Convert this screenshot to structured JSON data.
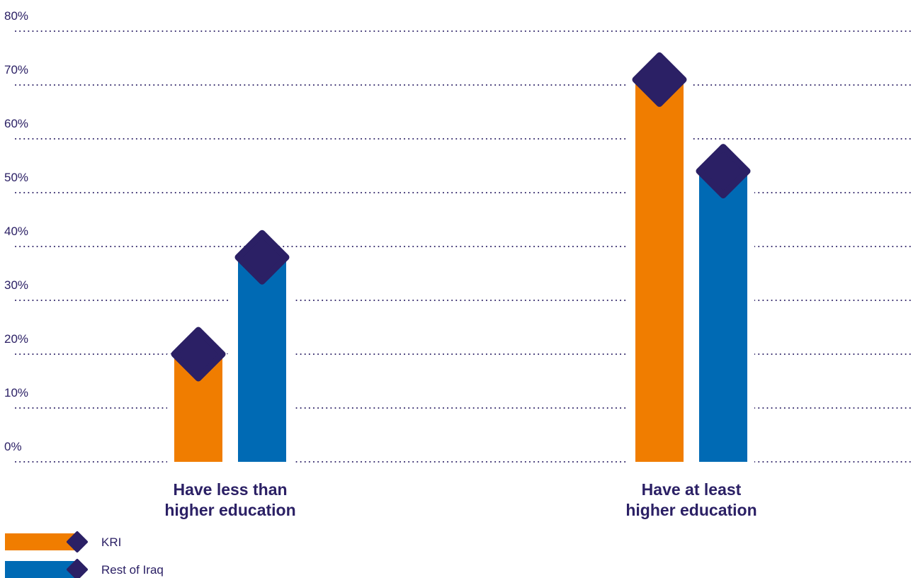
{
  "chart_data": {
    "type": "bar",
    "categories": [
      [
        "Have less than",
        "higher education"
      ],
      [
        "Have at least",
        "higher education"
      ]
    ],
    "series": [
      {
        "name": "KRI",
        "color": "#f07d00",
        "values": [
          20,
          71
        ]
      },
      {
        "name": "Rest of Iraq",
        "color": "#006ab4",
        "values": [
          38,
          54
        ]
      }
    ],
    "marker_color": "#2b2065",
    "marker_shape": "diamond",
    "ylim": [
      0,
      80
    ],
    "yticks": [
      0,
      10,
      20,
      30,
      40,
      50,
      60,
      70,
      80
    ],
    "ytick_labels": [
      "0%",
      "10%",
      "20%",
      "30%",
      "40%",
      "50%",
      "60%",
      "70%",
      "80%"
    ],
    "grid": "horizontal-dotted",
    "legend_position": "bottom-left",
    "title": "",
    "xlabel": "",
    "ylabel": ""
  }
}
